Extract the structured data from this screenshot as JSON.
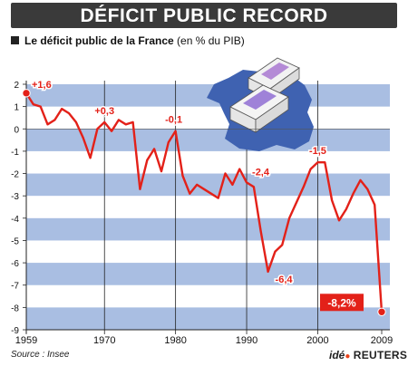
{
  "header": {
    "title": "DÉFICIT PUBLIC RECORD",
    "subtitle_bold": "Le déficit public de la France",
    "subtitle_rest": " (en % du PIB)"
  },
  "footer": {
    "source": "Source : Insee",
    "logo_ide": "idé",
    "logo_dot": "●",
    "logo_reuters": "REUTERS"
  },
  "colors": {
    "line": "#e32119",
    "band": "#a9bee2",
    "map": "#3f62b1",
    "text": "#111111"
  },
  "illustration": "map-of-france-with-banknote-stacks",
  "chart_data": {
    "type": "line",
    "title": "Le déficit public de la France",
    "ylabel": "en % du PIB",
    "xlim": [
      1959,
      2009
    ],
    "ylim": [
      -9,
      2
    ],
    "yticks": [
      2,
      1,
      0,
      -1,
      -2,
      -3,
      -4,
      -5,
      -6,
      -7,
      -8,
      -9
    ],
    "xticks": [
      1959,
      1970,
      1980,
      1990,
      2000,
      2009
    ],
    "vlines": [
      1970,
      1980,
      1990,
      2000
    ],
    "series": [
      {
        "x": [
          1959,
          1960,
          1961,
          1962,
          1963,
          1964,
          1965,
          1966,
          1967,
          1968,
          1969,
          1970,
          1971,
          1972,
          1973,
          1974,
          1975,
          1976,
          1977,
          1978,
          1979,
          1980,
          1981,
          1982,
          1983,
          1984,
          1985,
          1986,
          1987,
          1988,
          1989,
          1990,
          1991,
          1992,
          1993,
          1994,
          1995,
          1996,
          1997,
          1998,
          1999,
          2000,
          2001,
          2002,
          2003,
          2004,
          2005,
          2006,
          2007,
          2008,
          2009
        ],
        "y": [
          1.6,
          1.1,
          1.0,
          0.2,
          0.4,
          0.9,
          0.7,
          0.3,
          -0.4,
          -1.3,
          0.0,
          0.3,
          -0.1,
          0.4,
          0.2,
          0.3,
          -2.7,
          -1.4,
          -0.9,
          -1.9,
          -0.6,
          -0.1,
          -2.1,
          -2.9,
          -2.5,
          -2.7,
          -2.9,
          -3.1,
          -2.0,
          -2.5,
          -1.8,
          -2.4,
          -2.6,
          -4.6,
          -6.4,
          -5.5,
          -5.2,
          -4.0,
          -3.3,
          -2.6,
          -1.8,
          -1.5,
          -1.5,
          -3.2,
          -4.1,
          -3.6,
          -2.9,
          -2.3,
          -2.7,
          -3.4,
          -8.2
        ]
      }
    ],
    "annotations": [
      {
        "x": 1959,
        "y": 1.6,
        "text": "+1,6"
      },
      {
        "x": 1970,
        "y": 0.3,
        "text": "+0,3"
      },
      {
        "x": 1980,
        "y": -0.1,
        "text": "-0,1"
      },
      {
        "x": 1990,
        "y": -2.4,
        "text": "-2,4"
      },
      {
        "x": 1993,
        "y": -6.4,
        "text": "-6,4"
      },
      {
        "x": 2000,
        "y": -1.5,
        "text": "-1,5"
      },
      {
        "x": 2009,
        "y": -8.2,
        "text": "-8,2%",
        "boxed": true
      }
    ],
    "grid": "alternating horizontal bands"
  }
}
